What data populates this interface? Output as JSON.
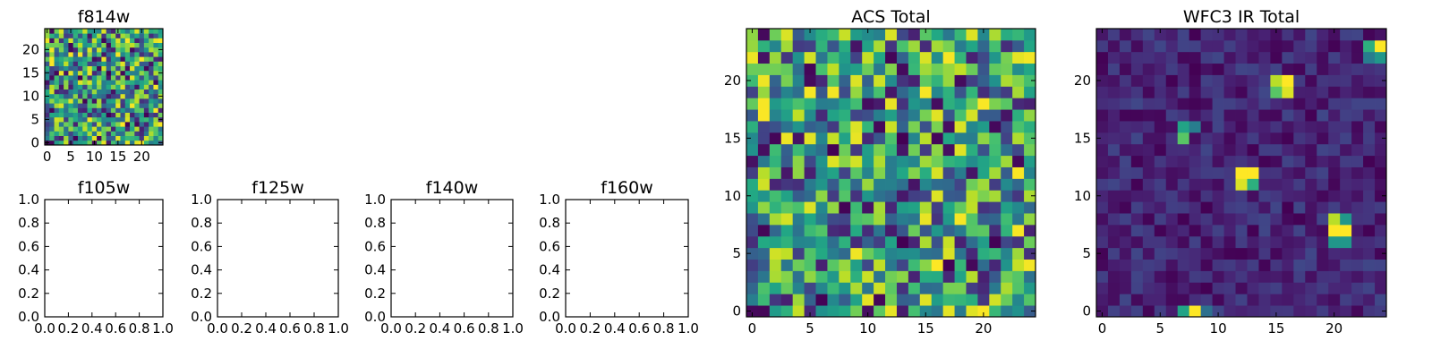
{
  "chart_data": [
    {
      "type": "heatmap",
      "title": "f814w",
      "xticks": [
        0,
        5,
        10,
        15,
        20
      ],
      "yticks": [
        0,
        5,
        10,
        15,
        20
      ],
      "xlim": [
        -0.5,
        24.5
      ],
      "ylim": [
        -0.5,
        24.5
      ],
      "grid_size": [
        25,
        25
      ],
      "colormap": "viridis",
      "value_range": [
        0.3,
        1.0
      ],
      "pattern": "same data as ACS Total"
    },
    {
      "type": "empty",
      "title": "f105w",
      "xticks": [
        "0.0",
        "0.2",
        "0.4",
        "0.6",
        "0.8",
        "1.0"
      ],
      "yticks": [
        "0.0",
        "0.2",
        "0.4",
        "0.6",
        "0.8",
        "1.0"
      ],
      "xlim": [
        0,
        1
      ],
      "ylim": [
        0,
        1
      ]
    },
    {
      "type": "empty",
      "title": "f125w",
      "xticks": [
        "0.0",
        "0.2",
        "0.4",
        "0.6",
        "0.8",
        "1.0"
      ],
      "yticks": [
        "0.0",
        "0.2",
        "0.4",
        "0.6",
        "0.8",
        "1.0"
      ],
      "xlim": [
        0,
        1
      ],
      "ylim": [
        0,
        1
      ]
    },
    {
      "type": "empty",
      "title": "f140w",
      "xticks": [
        "0.0",
        "0.2",
        "0.4",
        "0.6",
        "0.8",
        "1.0"
      ],
      "yticks": [
        "0.0",
        "0.2",
        "0.4",
        "0.6",
        "0.8",
        "1.0"
      ],
      "xlim": [
        0,
        1
      ],
      "ylim": [
        0,
        1
      ]
    },
    {
      "type": "empty",
      "title": "f160w",
      "xticks": [
        "0.0",
        "0.2",
        "0.4",
        "0.6",
        "0.8",
        "1.0"
      ],
      "yticks": [
        "0.0",
        "0.2",
        "0.4",
        "0.6",
        "0.8",
        "1.0"
      ],
      "xlim": [
        0,
        1
      ],
      "ylim": [
        0,
        1
      ]
    },
    {
      "type": "heatmap",
      "title": "ACS Total",
      "xticks": [
        0,
        5,
        10,
        15,
        20
      ],
      "yticks": [
        0,
        5,
        10,
        15,
        20
      ],
      "xlim": [
        -0.5,
        24.5
      ],
      "ylim": [
        -0.5,
        24.5
      ],
      "grid_size": [
        25,
        25
      ],
      "colormap": "viridis",
      "value_range": [
        0.3,
        1.0
      ],
      "pattern": "noise"
    },
    {
      "type": "heatmap",
      "title": "WFC3 IR Total",
      "xticks": [
        0,
        5,
        10,
        15,
        20
      ],
      "yticks": [
        0,
        5,
        10,
        15,
        20
      ],
      "xlim": [
        -0.5,
        24.5
      ],
      "ylim": [
        -0.5,
        24.5
      ],
      "grid_size": [
        25,
        25
      ],
      "colormap": "viridis",
      "value_range": [
        0.0,
        0.2
      ],
      "pattern": "background with bright sources",
      "bright_sources": [
        {
          "x": 16,
          "y": 20,
          "value": 0.95
        },
        {
          "x": 15,
          "y": 20,
          "value": 0.85
        },
        {
          "x": 16,
          "y": 19,
          "value": 0.9
        },
        {
          "x": 15,
          "y": 19,
          "value": 0.7
        },
        {
          "x": 24,
          "y": 23,
          "value": 0.95
        },
        {
          "x": 23,
          "y": 23,
          "value": 0.6
        },
        {
          "x": 24,
          "y": 22,
          "value": 0.5
        },
        {
          "x": 23,
          "y": 22,
          "value": 0.4
        },
        {
          "x": 7,
          "y": 16,
          "value": 0.55
        },
        {
          "x": 7,
          "y": 15,
          "value": 0.7
        },
        {
          "x": 8,
          "y": 16,
          "value": 0.4
        },
        {
          "x": 12,
          "y": 12,
          "value": 0.95
        },
        {
          "x": 13,
          "y": 12,
          "value": 0.95
        },
        {
          "x": 12,
          "y": 11,
          "value": 0.9
        },
        {
          "x": 13,
          "y": 11,
          "value": 0.6
        },
        {
          "x": 20,
          "y": 8,
          "value": 0.85
        },
        {
          "x": 21,
          "y": 8,
          "value": 0.5
        },
        {
          "x": 20,
          "y": 7,
          "value": 0.95
        },
        {
          "x": 21,
          "y": 7,
          "value": 0.95
        },
        {
          "x": 20,
          "y": 6,
          "value": 0.5
        },
        {
          "x": 21,
          "y": 6,
          "value": 0.5
        },
        {
          "x": 8,
          "y": 0,
          "value": 0.95
        },
        {
          "x": 7,
          "y": 0,
          "value": 0.55
        },
        {
          "x": 9,
          "y": 0,
          "value": 0.35
        }
      ]
    }
  ]
}
